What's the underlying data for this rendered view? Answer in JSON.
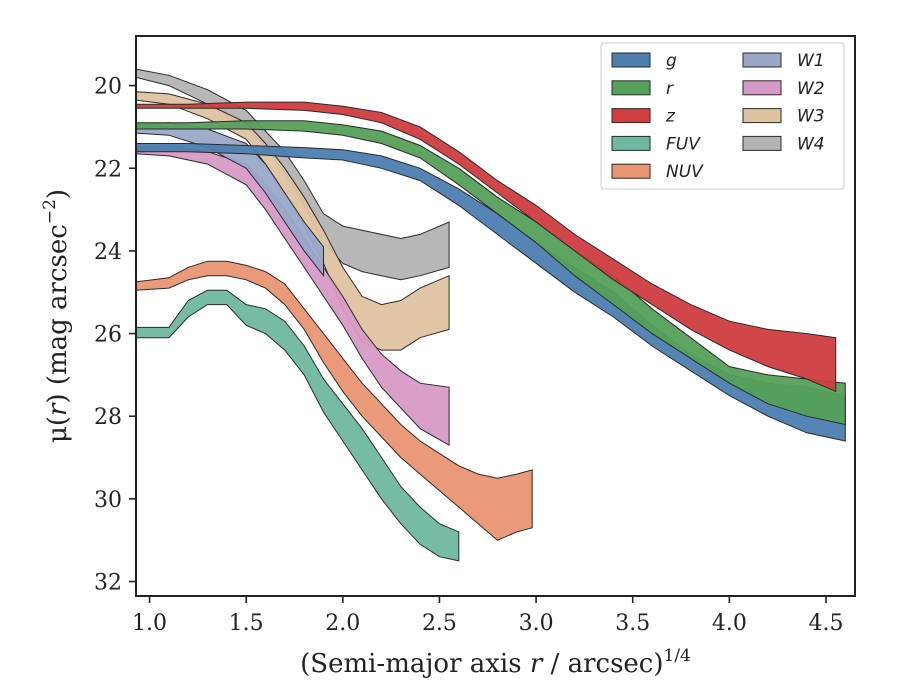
{
  "chart_data": {
    "type": "area",
    "xlabel": "(Semi-major axis r / arcsec)^1/4",
    "xlabel_parts": {
      "pre": "(Semi-major axis ",
      "var": "r",
      "mid": " / arcsec)",
      "sup": "1/4"
    },
    "ylabel": "μ(r) (mag arcsec^-2)",
    "ylabel_parts": {
      "pre": "μ(",
      "var": "r",
      "mid": ") (mag arcsec",
      "sup": "−2",
      "post": ")"
    },
    "xlim": [
      0.93,
      4.65
    ],
    "ylim": [
      32.35,
      18.8
    ],
    "y_inverted": true,
    "xticks": [
      1.0,
      1.5,
      2.0,
      2.5,
      3.0,
      3.5,
      4.0,
      4.5
    ],
    "xtick_labels": [
      "1.0",
      "1.5",
      "2.0",
      "2.5",
      "3.0",
      "3.5",
      "4.0",
      "4.5"
    ],
    "yticks": [
      20,
      22,
      24,
      26,
      28,
      30,
      32
    ],
    "ytick_labels": [
      "20",
      "22",
      "24",
      "26",
      "28",
      "30",
      "32"
    ],
    "legend_placement": "top-right",
    "legend_columns": 2,
    "series": [
      {
        "name": "g",
        "color": "#4c7eb0",
        "x": [
          0.93,
          1.2,
          1.5,
          1.8,
          2.0,
          2.2,
          2.4,
          2.6,
          2.8,
          3.0,
          3.2,
          3.4,
          3.6,
          3.8,
          4.0,
          4.2,
          4.4,
          4.6
        ],
        "y_low": [
          21.6,
          21.6,
          21.65,
          21.75,
          21.8,
          22.0,
          22.3,
          22.9,
          23.6,
          24.3,
          25.0,
          25.6,
          26.3,
          26.9,
          27.5,
          28.0,
          28.4,
          28.6
        ],
        "y_high": [
          21.4,
          21.4,
          21.45,
          21.5,
          21.55,
          21.7,
          22.0,
          22.5,
          23.1,
          23.8,
          24.4,
          25.0,
          25.8,
          26.5,
          27.0,
          27.2,
          27.3,
          27.5
        ]
      },
      {
        "name": "r",
        "color": "#55a05a",
        "x": [
          0.93,
          1.2,
          1.5,
          1.8,
          2.0,
          2.2,
          2.4,
          2.6,
          2.8,
          3.0,
          3.2,
          3.4,
          3.6,
          3.8,
          4.0,
          4.2,
          4.4,
          4.6
        ],
        "y_low": [
          21.05,
          21.05,
          21.05,
          21.1,
          21.2,
          21.4,
          21.75,
          22.4,
          23.1,
          23.8,
          24.6,
          25.3,
          26.0,
          26.6,
          27.2,
          27.7,
          28.0,
          28.2
        ],
        "y_high": [
          20.9,
          20.9,
          20.85,
          20.85,
          20.95,
          21.1,
          21.45,
          22.0,
          22.7,
          23.3,
          24.0,
          24.6,
          25.4,
          26.1,
          26.8,
          27.0,
          27.1,
          27.2
        ]
      },
      {
        "name": "z",
        "color": "#cf3d3f",
        "x": [
          0.93,
          1.2,
          1.5,
          1.8,
          2.0,
          2.2,
          2.4,
          2.6,
          2.8,
          3.0,
          3.2,
          3.4,
          3.6,
          3.8,
          4.0,
          4.2,
          4.4,
          4.55
        ],
        "y_low": [
          20.55,
          20.55,
          20.55,
          20.6,
          20.7,
          20.9,
          21.3,
          21.9,
          22.6,
          23.3,
          24.0,
          24.7,
          25.3,
          25.9,
          26.4,
          26.8,
          27.1,
          27.4
        ],
        "y_high": [
          20.45,
          20.45,
          20.4,
          20.4,
          20.5,
          20.65,
          21.0,
          21.6,
          22.3,
          22.9,
          23.6,
          24.2,
          24.8,
          25.3,
          25.7,
          25.9,
          26.0,
          26.1
        ]
      },
      {
        "name": "FUV",
        "color": "#6fb7a0",
        "x": [
          0.93,
          1.1,
          1.2,
          1.3,
          1.4,
          1.5,
          1.6,
          1.7,
          1.8,
          1.9,
          2.0,
          2.1,
          2.2,
          2.3,
          2.4,
          2.5,
          2.6
        ],
        "y_low": [
          26.1,
          26.1,
          25.6,
          25.3,
          25.3,
          25.8,
          26.0,
          26.4,
          27.0,
          27.9,
          28.6,
          29.3,
          30.0,
          30.6,
          31.1,
          31.4,
          31.5
        ],
        "y_high": [
          25.85,
          25.85,
          25.2,
          24.95,
          24.95,
          25.3,
          25.4,
          25.7,
          26.3,
          27.1,
          27.7,
          28.3,
          29.0,
          29.7,
          30.2,
          30.6,
          30.8
        ]
      },
      {
        "name": "NUV",
        "color": "#e99572",
        "x": [
          0.93,
          1.1,
          1.2,
          1.3,
          1.4,
          1.5,
          1.6,
          1.7,
          1.8,
          1.9,
          2.0,
          2.1,
          2.2,
          2.3,
          2.4,
          2.5,
          2.6,
          2.7,
          2.8,
          2.9,
          2.98
        ],
        "y_low": [
          24.95,
          24.9,
          24.7,
          24.6,
          24.6,
          24.7,
          24.9,
          25.3,
          25.9,
          26.7,
          27.4,
          28.0,
          28.5,
          29.0,
          29.4,
          29.8,
          30.2,
          30.6,
          31.0,
          30.8,
          30.7
        ],
        "y_high": [
          24.75,
          24.65,
          24.4,
          24.25,
          24.25,
          24.35,
          24.5,
          24.8,
          25.4,
          26.0,
          26.6,
          27.2,
          27.7,
          28.2,
          28.6,
          28.9,
          29.2,
          29.4,
          29.5,
          29.4,
          29.3
        ]
      },
      {
        "name": "W1",
        "color": "#9aa8c8",
        "x": [
          0.93,
          1.1,
          1.3,
          1.5,
          1.6,
          1.7,
          1.8,
          1.9
        ],
        "y_low": [
          21.15,
          21.2,
          21.5,
          22.0,
          22.6,
          23.3,
          24.0,
          24.6
        ],
        "y_high": [
          20.95,
          20.9,
          21.05,
          21.4,
          21.9,
          22.6,
          23.3,
          23.9
        ]
      },
      {
        "name": "W2",
        "color": "#d79ac6",
        "x": [
          0.93,
          1.1,
          1.3,
          1.5,
          1.6,
          1.7,
          1.8,
          1.9,
          2.0,
          2.1,
          2.2,
          2.3,
          2.4,
          2.55
        ],
        "y_low": [
          21.65,
          21.7,
          21.9,
          22.4,
          23.0,
          23.7,
          24.4,
          25.1,
          25.8,
          26.6,
          27.3,
          27.8,
          28.3,
          28.7
        ],
        "y_high": [
          21.5,
          21.45,
          21.6,
          21.9,
          22.4,
          23.0,
          23.7,
          24.4,
          25.1,
          25.9,
          26.5,
          26.9,
          27.2,
          27.3
        ]
      },
      {
        "name": "W3",
        "color": "#dec3a0",
        "x": [
          0.93,
          1.1,
          1.3,
          1.5,
          1.6,
          1.7,
          1.8,
          1.9,
          2.0,
          2.1,
          2.2,
          2.3,
          2.4,
          2.55
        ],
        "y_low": [
          20.35,
          20.45,
          20.8,
          21.3,
          21.9,
          22.6,
          23.4,
          24.3,
          25.4,
          26.2,
          26.4,
          26.4,
          26.1,
          25.9
        ],
        "y_high": [
          20.15,
          20.2,
          20.45,
          20.9,
          21.4,
          22.0,
          22.7,
          23.5,
          24.4,
          25.1,
          25.3,
          25.2,
          24.9,
          24.6
        ]
      },
      {
        "name": "W4",
        "color": "#b3b3b3",
        "x": [
          0.93,
          1.1,
          1.3,
          1.5,
          1.6,
          1.7,
          1.8,
          1.9,
          2.0,
          2.1,
          2.2,
          2.3,
          2.4,
          2.55
        ],
        "y_low": [
          19.8,
          20.0,
          20.45,
          21.0,
          21.5,
          22.1,
          22.9,
          23.8,
          24.3,
          24.5,
          24.6,
          24.7,
          24.6,
          24.4
        ],
        "y_high": [
          19.6,
          19.75,
          20.1,
          20.6,
          21.1,
          21.6,
          22.3,
          23.1,
          23.4,
          23.5,
          23.6,
          23.7,
          23.6,
          23.3
        ]
      }
    ]
  }
}
